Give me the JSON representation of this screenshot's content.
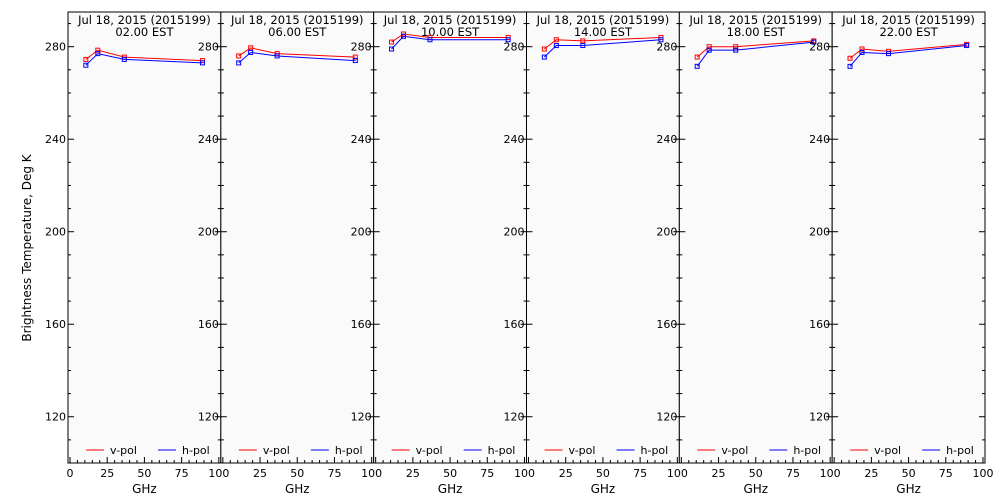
{
  "chart_data": {
    "type": "line",
    "ylabel": "Brightness Temperature, Deg K",
    "xlabel": "GHz",
    "xlim": [
      0,
      100
    ],
    "ylim": [
      100,
      295
    ],
    "xticks": [
      "0",
      "25",
      "50",
      "75",
      "100"
    ],
    "yticks": [
      120,
      160,
      200,
      240,
      280
    ],
    "x": [
      10.65,
      18.7,
      36.5,
      89.0
    ],
    "legend": [
      {
        "label": "v-pol",
        "color": "#ff0000"
      },
      {
        "label": "h-pol",
        "color": "#0000ff"
      }
    ],
    "panels": [
      {
        "date": "Jul 18, 2015 (2015199)",
        "time": "02.00 EST",
        "v_pol": [
          274.5,
          278.5,
          275.5,
          274.0
        ],
        "h_pol": [
          272.0,
          277.0,
          274.5,
          273.0
        ]
      },
      {
        "date": "Jul 18, 2015 (2015199)",
        "time": "06.00 EST",
        "v_pol": [
          276.0,
          279.5,
          277.0,
          275.5
        ],
        "h_pol": [
          273.0,
          277.5,
          276.0,
          274.0
        ]
      },
      {
        "date": "Jul 18, 2015 (2015199)",
        "time": "10.00 EST",
        "v_pol": [
          282.0,
          285.5,
          284.0,
          284.0
        ],
        "h_pol": [
          279.0,
          284.5,
          283.0,
          283.0
        ]
      },
      {
        "date": "Jul 18, 2015 (2015199)",
        "time": "14.00 EST",
        "v_pol": [
          279.0,
          283.0,
          282.5,
          284.0
        ],
        "h_pol": [
          275.5,
          280.5,
          280.5,
          283.0
        ]
      },
      {
        "date": "Jul 18, 2015 (2015199)",
        "time": "18.00 EST",
        "v_pol": [
          275.5,
          280.0,
          280.0,
          282.5
        ],
        "h_pol": [
          271.5,
          278.5,
          278.5,
          282.0
        ]
      },
      {
        "date": "Jul 18, 2015 (2015199)",
        "time": "22.00 EST",
        "v_pol": [
          275.0,
          279.0,
          278.0,
          281.0
        ],
        "h_pol": [
          271.5,
          277.5,
          277.0,
          280.5
        ]
      }
    ]
  }
}
